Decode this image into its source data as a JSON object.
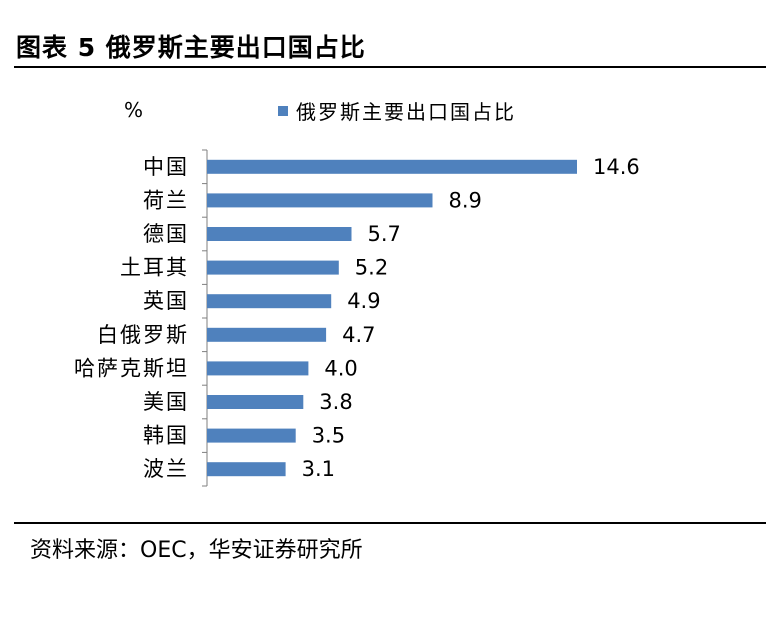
{
  "header": {
    "title": "图表 5 俄罗斯主要出口国占比"
  },
  "source": {
    "text": "资料来源：OEC，华安证券研究所"
  },
  "chart_data": {
    "type": "bar",
    "orientation": "horizontal",
    "unit_label": "%",
    "categories": [
      "中国",
      "荷兰",
      "德国",
      "土耳其",
      "英国",
      "白俄罗斯",
      "哈萨克斯坦",
      "美国",
      "韩国",
      "波兰"
    ],
    "series": [
      {
        "name": "俄罗斯主要出口国占比",
        "values": [
          14.6,
          8.9,
          5.7,
          5.2,
          4.9,
          4.7,
          4.0,
          3.8,
          3.5,
          3.1
        ],
        "color": "#4F81BD"
      }
    ],
    "xlim": [
      0,
      16
    ],
    "grid": false,
    "legend": "top"
  }
}
